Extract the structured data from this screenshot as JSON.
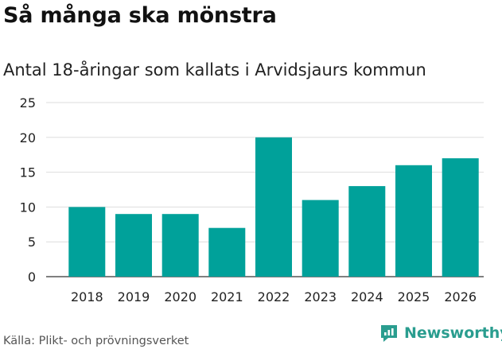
{
  "header": {
    "title": "Så många ska mönstra"
  },
  "chart_data": {
    "type": "bar",
    "title": "Så många ska mönstra",
    "subtitle": "Antal 18-åringar som kallats i Arvidsjaurs kommun",
    "categories": [
      "2018",
      "2019",
      "2020",
      "2021",
      "2022",
      "2023",
      "2024",
      "2025",
      "2026"
    ],
    "values": [
      10,
      9,
      9,
      7,
      20,
      11,
      13,
      16,
      17
    ],
    "ylim": [
      0,
      25
    ],
    "yticks": [
      0,
      5,
      10,
      15,
      20,
      25
    ],
    "xlabel": "",
    "ylabel": "",
    "grid": true,
    "bar_color": "#00a19a",
    "grid_color": "#dddddd"
  },
  "footer": {
    "source": "Källa: Plikt- och prövningsverket",
    "brand": "Newsworthy",
    "brand_color": "#2a9d8f"
  }
}
